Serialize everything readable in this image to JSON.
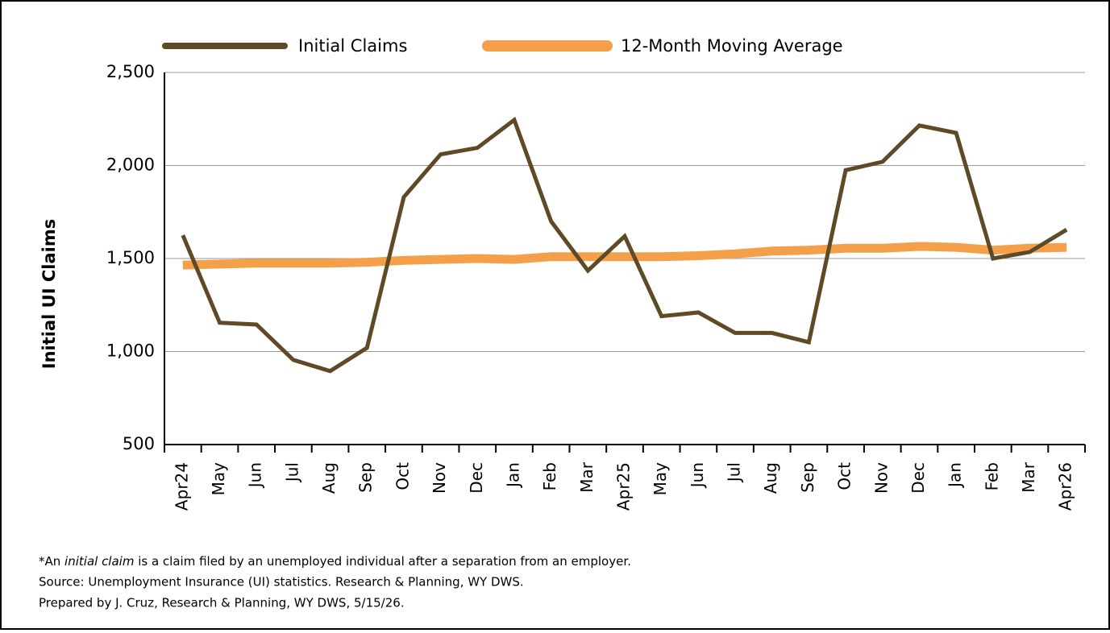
{
  "chart_data": {
    "type": "line",
    "y_label": "Initial UI Claims",
    "categories": [
      "Apr24",
      "May",
      "Jun",
      "Jul",
      "Aug",
      "Sep",
      "Oct",
      "Nov",
      "Dec",
      "Jan",
      "Feb",
      "Mar",
      "Apr25",
      "May",
      "Jun",
      "Jul",
      "Aug",
      "Sep",
      "Oct",
      "Nov",
      "Dec",
      "Jan",
      "Feb",
      "Mar",
      "Apr26"
    ],
    "series": [
      {
        "name": "Initial Claims",
        "color": "#5e4a26",
        "width": 5,
        "values": [
          1625,
          1155,
          1145,
          955,
          895,
          1020,
          1830,
          2060,
          2095,
          2245,
          1700,
          1435,
          1620,
          1190,
          1210,
          1100,
          1100,
          1050,
          1975,
          2020,
          2215,
          2175,
          1500,
          1535,
          1655
        ]
      },
      {
        "name": "12-Month Moving Average",
        "color": "#f4a04a",
        "width": 11,
        "values": [
          1465,
          1470,
          1475,
          1475,
          1475,
          1480,
          1490,
          1495,
          1500,
          1495,
          1510,
          1510,
          1510,
          1510,
          1515,
          1525,
          1540,
          1545,
          1555,
          1555,
          1565,
          1560,
          1545,
          1555,
          1560
        ]
      }
    ],
    "ylim": [
      500,
      2500
    ],
    "yticks": [
      {
        "value": 500,
        "label": "500"
      },
      {
        "value": 1000,
        "label": "1,000"
      },
      {
        "value": 1500,
        "label": "1,500"
      },
      {
        "value": 2000,
        "label": "2,000"
      },
      {
        "value": 2500,
        "label": "2,500"
      }
    ],
    "grid": true,
    "footnote": {
      "prefix": "*An ",
      "italic": "initial claim",
      "rest": " is a claim filed by an unemployed individual after a separation from an employer."
    },
    "source": "Source: Unemployment Insurance (UI) statistics. Research & Planning, WY DWS.",
    "prepared": "Prepared by J. Cruz, Research & Planning, WY DWS, 5/15/26."
  }
}
